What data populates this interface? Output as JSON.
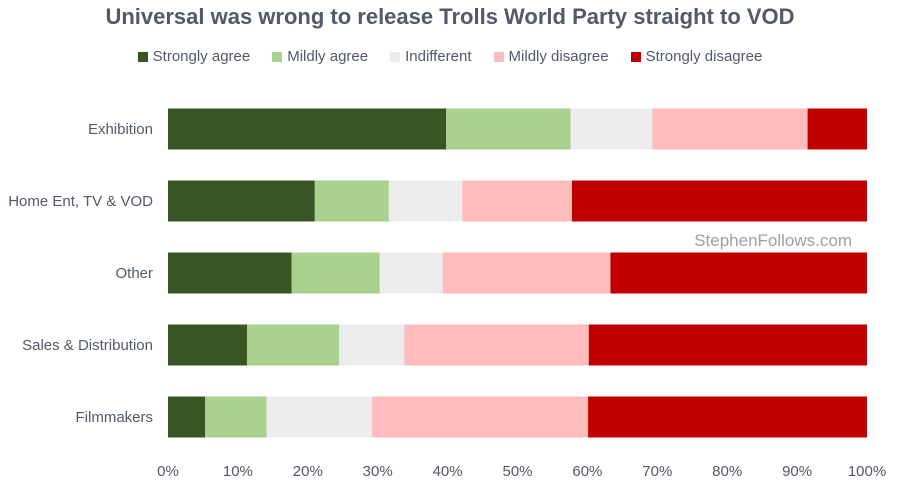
{
  "chart_data": {
    "type": "bar",
    "orientation": "horizontal",
    "stacked": "percent",
    "title": "Universal was wrong to release Trolls World Party straight to VOD",
    "categories": [
      "Exhibition",
      "Home Ent, TV & VOD",
      "Other",
      "Sales & Distribution",
      "Filmmakers"
    ],
    "series": [
      {
        "name": "Strongly agree",
        "color": "#375623",
        "values": [
          39.8,
          21.0,
          17.7,
          11.3,
          5.3
        ]
      },
      {
        "name": "Mildly agree",
        "color": "#a9d18e",
        "values": [
          17.8,
          10.6,
          12.6,
          13.2,
          8.8
        ]
      },
      {
        "name": "Indifferent",
        "color": "#ececec",
        "values": [
          11.7,
          10.5,
          9.0,
          9.3,
          15.1
        ]
      },
      {
        "name": "Mildly disagree",
        "color": "#ffbcbc",
        "values": [
          22.2,
          15.7,
          24.0,
          26.4,
          30.9
        ]
      },
      {
        "name": "Strongly disagree",
        "color": "#c00000",
        "values": [
          8.5,
          42.2,
          36.7,
          39.8,
          39.9
        ]
      }
    ],
    "xlim": [
      0,
      100
    ],
    "xticks": [
      "0%",
      "10%",
      "20%",
      "30%",
      "40%",
      "50%",
      "60%",
      "70%",
      "80%",
      "90%",
      "100%"
    ],
    "xlabel": "",
    "ylabel": "",
    "legend_position": "top",
    "grid": false,
    "watermark": "StephenFollows.com"
  }
}
